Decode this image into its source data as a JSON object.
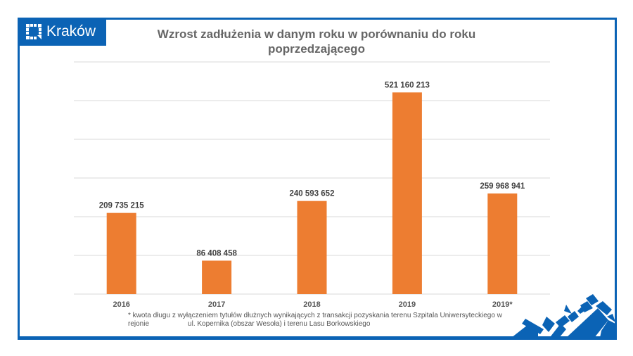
{
  "logo": {
    "text": "Kraków",
    "icon": "krakow-logo-icon"
  },
  "colors": {
    "brand": "#0b63b5",
    "bar": "#ed7d31",
    "grid": "#d9d9d9"
  },
  "chart_data": {
    "type": "bar",
    "title": "Wzrost zadłużenia w danym roku w porównaniu do roku poprzedzającego",
    "categories": [
      "2016",
      "2017",
      "2018",
      "2019",
      "2019*"
    ],
    "values": [
      209735215,
      86408458,
      240593652,
      521160213,
      259968941
    ],
    "labels": [
      "209 735 215",
      "86 408 458",
      "240 593 652",
      "521 160 213",
      "259 968 941"
    ],
    "ylim": [
      0,
      600000000
    ],
    "ytick_step": 100000000,
    "grid": true,
    "xlabel": "",
    "ylabel": ""
  },
  "footnote": {
    "line1": "* kwota długu z wyłączeniem tytułów dłużnych wynikających z transakcji pozyskania terenu Szpitala Uniwersyteckiego w",
    "line2a": "rejonie",
    "line2b": "ul. Kopernika (obszar Wesoła) i terenu Lasu Borkowskiego"
  }
}
